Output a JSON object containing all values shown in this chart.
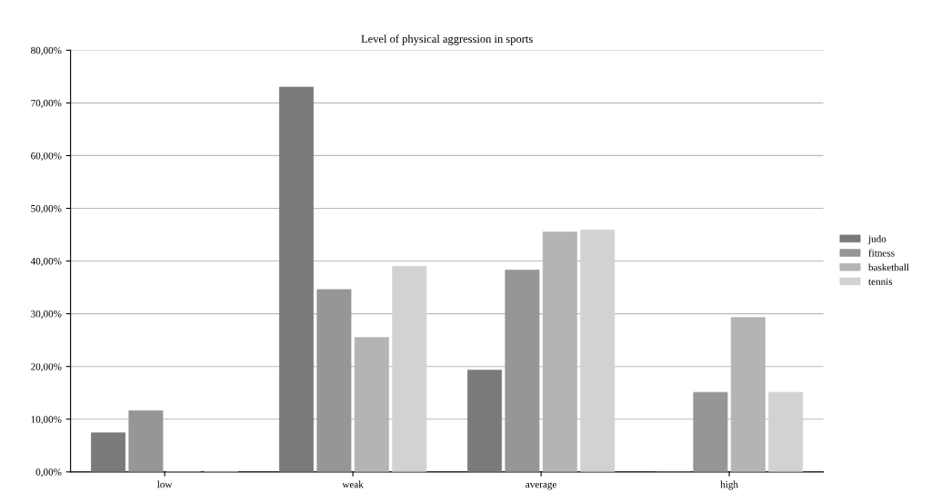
{
  "chart_data": {
    "type": "bar",
    "title": "Level of physical aggression in sports",
    "categories": [
      "low",
      "weak",
      "average",
      "high"
    ],
    "series": [
      {
        "name": "judo",
        "color": "#7a7a7a",
        "values": [
          7.4,
          73.0,
          19.3,
          0
        ]
      },
      {
        "name": "fitness",
        "color": "#969696",
        "values": [
          11.6,
          34.6,
          38.3,
          15.1
        ]
      },
      {
        "name": "basketball",
        "color": "#b4b4b4",
        "values": [
          0,
          25.5,
          45.5,
          29.3
        ]
      },
      {
        "name": "tennis",
        "color": "#d2d2d2",
        "values": [
          0,
          39.0,
          45.9,
          15.1
        ]
      }
    ],
    "ylim": [
      0,
      80
    ],
    "yticks": [
      {
        "value": 0,
        "label": "0,00%"
      },
      {
        "value": 10,
        "label": "10,00%"
      },
      {
        "value": 20,
        "label": "20,00%"
      },
      {
        "value": 30,
        "label": "30,00%"
      },
      {
        "value": 40,
        "label": "40,00%"
      },
      {
        "value": 50,
        "label": "50,00%"
      },
      {
        "value": 60,
        "label": "60,00%"
      },
      {
        "value": 70,
        "label": "70,00%"
      },
      {
        "value": 80,
        "label": "80,00%"
      }
    ],
    "grid": "y",
    "legend": "right"
  }
}
